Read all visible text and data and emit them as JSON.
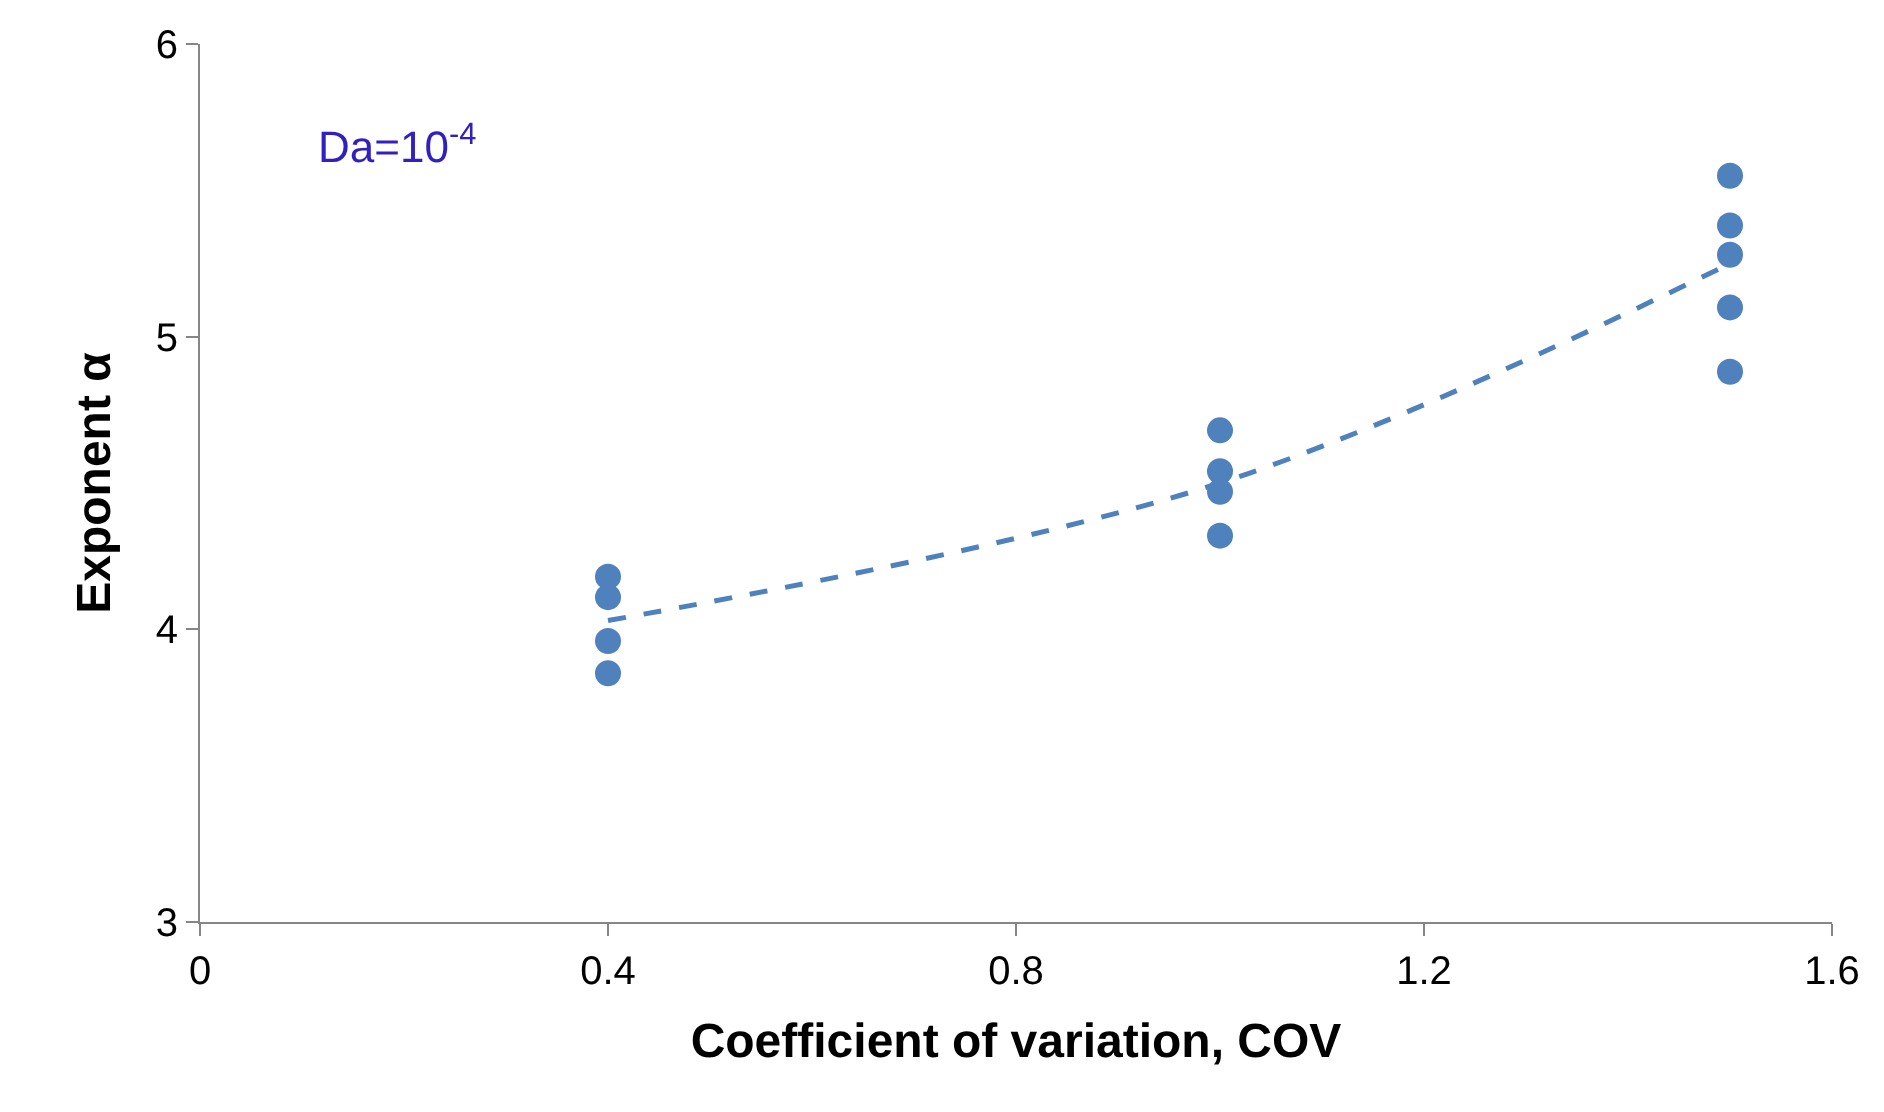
{
  "chart_data": {
    "type": "scatter",
    "xlabel": "Coefficient of variation, COV",
    "ylabel": "Exponent α",
    "xlim": [
      0,
      1.6
    ],
    "xticks": [
      0,
      0.4,
      0.8,
      1.2,
      1.6
    ],
    "ylim": [
      3,
      6
    ],
    "yticks": [
      3,
      4,
      5,
      6
    ],
    "marker": "circle",
    "series": [
      {
        "color": "#4f81bd",
        "x": [
          0.4,
          0.4,
          0.4,
          0.4,
          1.0,
          1.0,
          1.0,
          1.0,
          1.5,
          1.5,
          1.5,
          1.5,
          1.5
        ],
        "values": [
          4.18,
          4.11,
          3.96,
          3.85,
          4.68,
          4.54,
          4.47,
          4.32,
          5.55,
          5.38,
          5.28,
          5.1,
          4.88
        ]
      },
      {
        "type": "line",
        "color": "#4f81bd",
        "line_style": "dashed",
        "marker": "none",
        "x": [
          0.4,
          1.0,
          1.5
        ],
        "values": [
          4.03,
          4.5,
          5.25
        ]
      }
    ],
    "annotations": [
      "Da=10$^{-4}$"
    ]
  }
}
